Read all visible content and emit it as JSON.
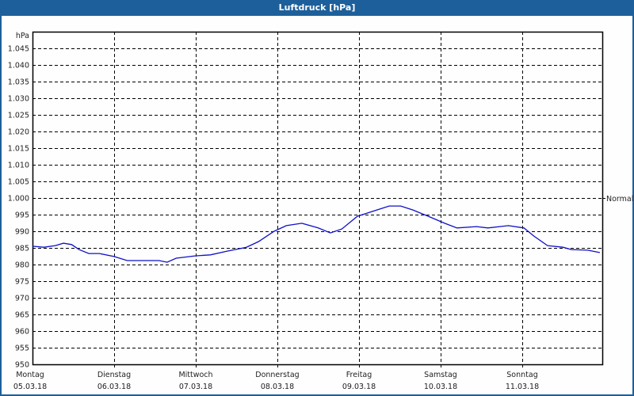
{
  "window": {
    "title": "Luftdruck [hPa]"
  },
  "colors": {
    "titlebar": "#1d5f9a",
    "line": "#1010c8",
    "grid": "#000000"
  },
  "chart_data": {
    "type": "line",
    "title": "Luftdruck [hPa]",
    "ylabel": "hPa",
    "xlabel": "",
    "ylim": [
      950,
      1045
    ],
    "grid": true,
    "y_ticks": [
      "950",
      "955",
      "960",
      "965",
      "970",
      "975",
      "980",
      "985",
      "990",
      "995",
      "1.000",
      "1.005",
      "1.010",
      "1.015",
      "1.020",
      "1.025",
      "1.030",
      "1.035",
      "1.040",
      "1.045"
    ],
    "x_ticks": [
      {
        "day": "Montag",
        "date": "05.03.18"
      },
      {
        "day": "Dienstag",
        "date": "06.03.18"
      },
      {
        "day": "Mittwoch",
        "date": "07.03.18"
      },
      {
        "day": "Donnerstag",
        "date": "08.03.18"
      },
      {
        "day": "Freitag",
        "date": "09.03.18"
      },
      {
        "day": "Samstag",
        "date": "10.03.18"
      },
      {
        "day": "Sonntag",
        "date": "11.03.18"
      }
    ],
    "annotations": [
      {
        "label": "Normal",
        "value": 1000
      }
    ],
    "series": [
      {
        "name": "Luftdruck",
        "x_days": [
          0,
          0.14,
          0.28,
          0.38,
          0.48,
          0.57,
          0.69,
          0.82,
          1.0,
          1.16,
          1.3,
          1.55,
          1.65,
          1.76,
          1.99,
          2.18,
          2.38,
          2.62,
          2.77,
          2.96,
          3.11,
          3.3,
          3.5,
          3.65,
          3.79,
          3.98,
          4.17,
          4.37,
          4.51,
          4.66,
          4.85,
          5.05,
          5.2,
          5.44,
          5.58,
          5.83,
          6.02,
          6.14,
          6.31,
          6.5,
          6.6,
          6.8,
          6.95
        ],
        "values": [
          985.5,
          985.2,
          985.7,
          986.4,
          986.0,
          984.5,
          983.3,
          983.3,
          982.4,
          981.2,
          981.2,
          981.2,
          980.7,
          981.9,
          982.6,
          982.9,
          984.0,
          985.2,
          986.9,
          990.0,
          991.7,
          992.4,
          991.0,
          989.5,
          990.7,
          994.5,
          996.0,
          997.6,
          997.6,
          996.4,
          994.5,
          992.4,
          991.0,
          991.4,
          991.0,
          991.7,
          991.0,
          988.6,
          985.7,
          985.2,
          984.5,
          984.3,
          983.6
        ]
      }
    ]
  }
}
